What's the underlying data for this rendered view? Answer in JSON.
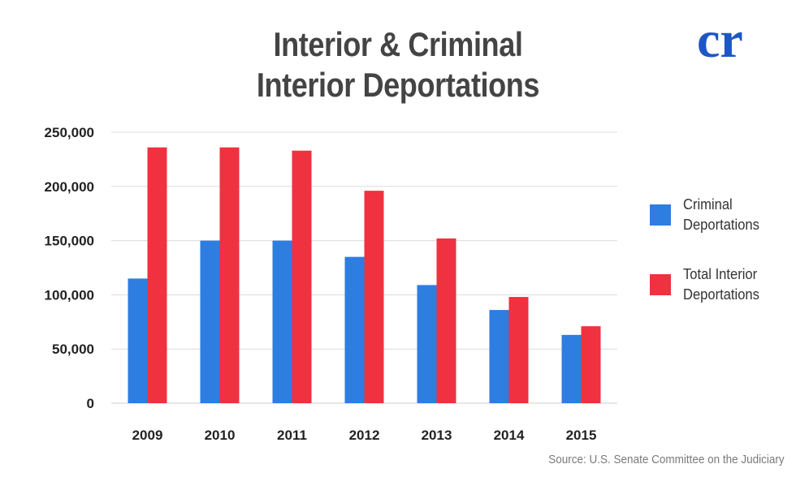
{
  "header": {
    "title_line1": "Interior & Criminal",
    "title_line2": "Interior Deportations",
    "logo_text": "cr",
    "logo_color": "#1e56c4"
  },
  "footer": {
    "source": "Source: U.S. Senate Committee on the Judiciary"
  },
  "legend": {
    "items": [
      {
        "label": "Criminal Deportations",
        "color": "#2e7de0"
      },
      {
        "label": "Total Interior Deportations",
        "color": "#f0313f"
      }
    ]
  },
  "chart_data": {
    "type": "bar",
    "title": "Interior & Criminal Interior Deportations",
    "categories": [
      "2009",
      "2010",
      "2011",
      "2012",
      "2013",
      "2014",
      "2015"
    ],
    "series": [
      {
        "name": "Criminal Deportations",
        "color": "#2e7de0",
        "values": [
          115000,
          150000,
          150000,
          135000,
          109000,
          86000,
          63000
        ]
      },
      {
        "name": "Total Interior Deportations",
        "color": "#f0313f",
        "values": [
          236000,
          236000,
          233000,
          196000,
          152000,
          98000,
          71000
        ]
      }
    ],
    "xlabel": "",
    "ylabel": "",
    "ylim": [
      0,
      250000
    ],
    "yticks": [
      "0",
      "50,000",
      "100,000",
      "150,000",
      "200,000",
      "250,000"
    ],
    "grid": true,
    "legend_position": "right"
  }
}
